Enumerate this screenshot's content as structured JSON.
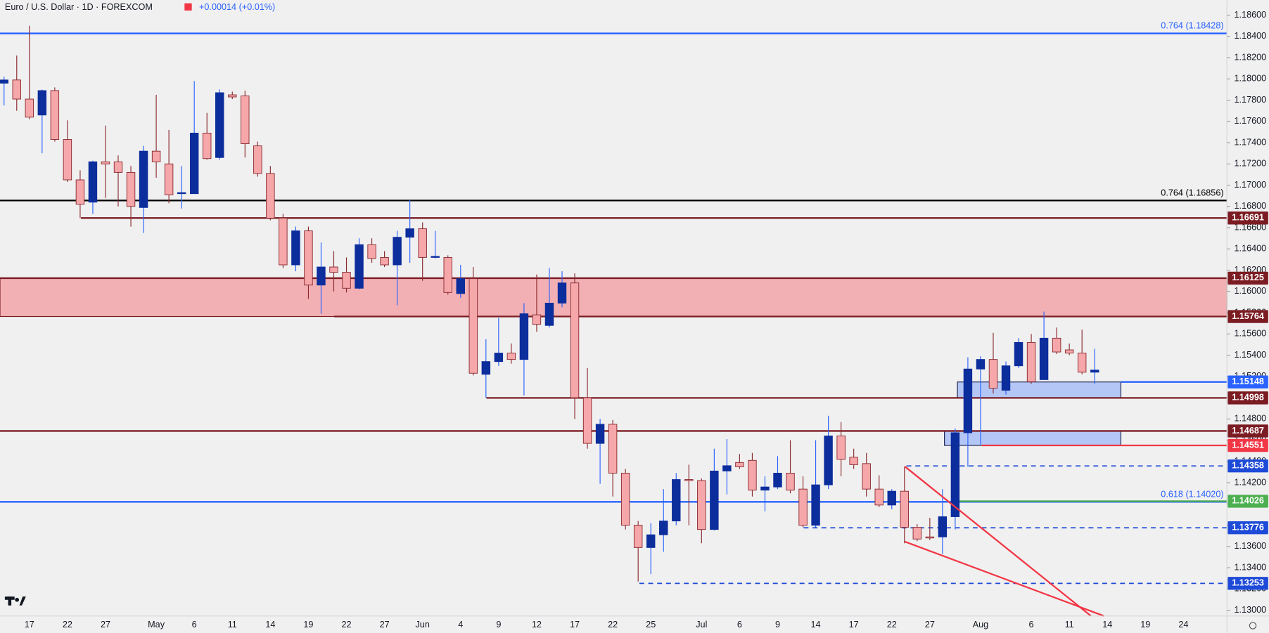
{
  "chart_data": {
    "type": "candlestick",
    "title": "Euro / U.S. Dollar · 1D · FOREXCOM",
    "change": "+0.00014 (+0.01%)",
    "up_color": "#0c2d9c",
    "up_wick_color": "#2962ff",
    "down_color": "#f5a7aa",
    "down_border_color": "#8b2a2f",
    "ylim": [
      1.12946,
      1.18742
    ],
    "yticks": [
      {
        "value": 1.13,
        "label": "1.13000"
      },
      {
        "value": 1.132,
        "label": "1.13200"
      },
      {
        "value": 1.134,
        "label": "1.13400"
      },
      {
        "value": 1.136,
        "label": "1.13600"
      },
      {
        "value": 1.138,
        "label": "1.13800"
      },
      {
        "value": 1.14,
        "label": "1.14000"
      },
      {
        "value": 1.142,
        "label": "1.14200"
      },
      {
        "value": 1.144,
        "label": "1.14400"
      },
      {
        "value": 1.146,
        "label": "1.14600"
      },
      {
        "value": 1.148,
        "label": "1.14800"
      },
      {
        "value": 1.15,
        "label": "1.15000"
      },
      {
        "value": 1.152,
        "label": "1.15200"
      },
      {
        "value": 1.154,
        "label": "1.15400"
      },
      {
        "value": 1.156,
        "label": "1.15600"
      },
      {
        "value": 1.158,
        "label": "1.15800"
      },
      {
        "value": 1.16,
        "label": "1.16000"
      },
      {
        "value": 1.162,
        "label": "1.16200"
      },
      {
        "value": 1.164,
        "label": "1.16400"
      },
      {
        "value": 1.166,
        "label": "1.16600"
      },
      {
        "value": 1.168,
        "label": "1.16800"
      },
      {
        "value": 1.17,
        "label": "1.17000"
      },
      {
        "value": 1.172,
        "label": "1.17200"
      },
      {
        "value": 1.174,
        "label": "1.17400"
      },
      {
        "value": 1.176,
        "label": "1.17600"
      },
      {
        "value": 1.178,
        "label": "1.17800"
      },
      {
        "value": 1.18,
        "label": "1.18000"
      },
      {
        "value": 1.182,
        "label": "1.18200"
      },
      {
        "value": 1.184,
        "label": "1.18400"
      },
      {
        "value": 1.186,
        "label": "1.18600"
      }
    ],
    "categories": [
      null,
      null,
      "17",
      null,
      null,
      "22",
      null,
      null,
      "27",
      null,
      null,
      null,
      "May",
      null,
      null,
      "6",
      null,
      null,
      "11",
      null,
      null,
      "14",
      null,
      null,
      "19",
      null,
      null,
      "22",
      null,
      null,
      "27",
      null,
      null,
      "Jun",
      null,
      null,
      "4",
      null,
      null,
      "9",
      null,
      null,
      "12",
      null,
      null,
      "17",
      null,
      null,
      "22",
      null,
      null,
      "25",
      null,
      null,
      null,
      "Jul",
      null,
      null,
      "6",
      null,
      null,
      "9",
      null,
      null,
      "14",
      null,
      null,
      "17",
      null,
      null,
      "22",
      null,
      null,
      "27",
      null,
      null,
      null,
      "Aug",
      null,
      null,
      null,
      "6",
      null,
      null,
      "11",
      null,
      null,
      "14",
      null,
      null,
      "19",
      null,
      null,
      "24"
    ],
    "open": [
      1.1796,
      1.1799,
      1.1781,
      1.1766,
      1.1789,
      1.1743,
      1.1705,
      1.1684,
      1.1722,
      1.1722,
      1.1712,
      1.1679,
      1.1732,
      1.172,
      1.1692,
      1.1692,
      1.1749,
      1.1726,
      1.1785,
      1.1784,
      1.1737,
      1.1711,
      1.1669,
      1.1625,
      1.1657,
      1.1606,
      1.1623,
      1.1618,
      1.1603,
      1.1644,
      1.1632,
      1.1625,
      1.1651,
      1.1659,
      1.1632,
      1.1632,
      1.1598,
      1.1612,
      1.1522,
      1.1534,
      1.1542,
      1.1536,
      1.1578,
      1.1568,
      1.1589,
      1.1608,
      1.15,
      1.1457,
      1.1475,
      1.1429,
      1.138,
      1.1359,
      1.1371,
      1.1384,
      1.1423,
      1.1422,
      1.1376,
      1.1431,
      1.1439,
      1.1441,
      1.1413,
      1.1416,
      1.1429,
      1.1414,
      1.138,
      1.1418,
      1.1464,
      1.1444,
      1.1438,
      1.1414,
      1.1399,
      1.1412,
      1.1378,
      1.1369,
      1.1369,
      1.1388,
      1.1467,
      1.1527,
      1.1536,
      1.1507,
      1.153,
      1.1552,
      1.1517,
      1.1556,
      1.1545,
      1.1542,
      1.1524,
      null,
      null,
      null,
      null,
      null,
      null,
      null
    ],
    "high": [
      1.1802,
      1.1822,
      1.185,
      1.179,
      1.1792,
      1.1761,
      1.1714,
      1.1723,
      1.1756,
      1.1728,
      1.1718,
      1.1737,
      1.1785,
      1.1752,
      1.1718,
      1.1798,
      1.1768,
      1.179,
      1.1788,
      1.1789,
      1.1741,
      1.1718,
      1.1673,
      1.1661,
      1.1661,
      1.1646,
      1.1638,
      1.1632,
      1.165,
      1.165,
      1.1638,
      1.1657,
      1.1686,
      1.1665,
      1.1657,
      1.1634,
      1.1625,
      1.1623,
      1.1555,
      1.1575,
      1.1551,
      1.1589,
      1.1616,
      1.1622,
      1.1619,
      1.1617,
      1.1528,
      1.148,
      1.1479,
      1.1433,
      1.1384,
      1.1382,
      1.1414,
      1.1429,
      1.1437,
      1.1424,
      1.1452,
      1.1461,
      1.1447,
      1.1448,
      1.1426,
      1.1445,
      1.146,
      1.1426,
      1.146,
      1.1483,
      1.1477,
      1.1452,
      1.1448,
      1.1427,
      1.1414,
      1.1435,
      1.1381,
      1.1387,
      1.1414,
      1.1471,
      1.1538,
      1.1539,
      1.1561,
      1.1534,
      1.1556,
      1.156,
      1.1581,
      1.1566,
      1.1551,
      1.1564,
      1.1546,
      null,
      null,
      null,
      null,
      null,
      null,
      null
    ],
    "low": [
      1.1775,
      1.177,
      1.1762,
      1.173,
      1.1741,
      1.1703,
      1.1669,
      1.1673,
      1.1688,
      1.168,
      1.1661,
      1.1655,
      1.1707,
      1.1683,
      1.1678,
      1.1692,
      1.1724,
      1.1724,
      1.1781,
      1.1726,
      1.1708,
      1.1667,
      1.1622,
      1.1619,
      1.1593,
      1.1579,
      1.16,
      1.1599,
      1.1602,
      1.1627,
      1.1623,
      1.1587,
      1.1627,
      1.161,
      1.1631,
      1.1597,
      1.1594,
      1.1521,
      1.15,
      1.153,
      1.1532,
      1.1502,
      1.1562,
      1.1566,
      1.1585,
      1.148,
      1.1452,
      1.1419,
      1.1407,
      1.1376,
      1.1327,
      1.1334,
      1.1355,
      1.138,
      1.138,
      1.1363,
      1.1375,
      1.1409,
      1.1433,
      1.1407,
      1.1393,
      1.1414,
      1.141,
      1.1378,
      1.1378,
      1.1414,
      1.1426,
      1.1433,
      1.1407,
      1.1397,
      1.1395,
      1.1363,
      1.1365,
      1.1366,
      1.1353,
      1.1376,
      1.1435,
      1.1456,
      1.1504,
      1.1503,
      1.1528,
      1.1513,
      1.1517,
      1.1541,
      1.154,
      1.1522,
      1.1513,
      null,
      null,
      null,
      null,
      null,
      null,
      null
    ],
    "close": [
      1.1799,
      1.1781,
      1.1764,
      1.1789,
      1.1743,
      1.1705,
      1.1682,
      1.1722,
      1.172,
      1.1712,
      1.168,
      1.1732,
      1.1722,
      1.1691,
      1.1693,
      1.1749,
      1.1725,
      1.1787,
      1.1783,
      1.1739,
      1.1711,
      1.1669,
      1.1625,
      1.1657,
      1.1606,
      1.1623,
      1.1618,
      1.1603,
      1.1644,
      1.1631,
      1.1625,
      1.1651,
      1.1659,
      1.1632,
      1.1633,
      1.1599,
      1.1612,
      1.1523,
      1.1534,
      1.1542,
      1.1536,
      1.1579,
      1.1569,
      1.1589,
      1.1608,
      1.15,
      1.1457,
      1.1475,
      1.1429,
      1.138,
      1.1359,
      1.1371,
      1.1384,
      1.1423,
      1.1422,
      1.1376,
      1.1431,
      1.1436,
      1.1435,
      1.1413,
      1.1416,
      1.1429,
      1.1413,
      1.138,
      1.1418,
      1.1464,
      1.1442,
      1.1437,
      1.1414,
      1.1399,
      1.1412,
      1.1378,
      1.1367,
      1.1368,
      1.1388,
      1.1467,
      1.1527,
      1.1536,
      1.1509,
      1.153,
      1.1552,
      1.1515,
      1.1556,
      1.1543,
      1.1542,
      1.1524,
      1.1526,
      null,
      null,
      null,
      null,
      null,
      null,
      null
    ],
    "zones": [
      {
        "top": 1.16125,
        "bottom": 1.15764,
        "color": "#f2b0b4",
        "border": "#7b1c22"
      },
      {
        "top": 1.15148,
        "bottom": 1.14998,
        "color": "#b3c6f5",
        "border": "#1b1f4a"
      },
      {
        "top": 1.14687,
        "bottom": 1.14551,
        "color": "#b3c6f5",
        "border": "#1b1f4a"
      }
    ],
    "levels": [
      {
        "value": 1.18428,
        "text": "0.764 (1.18428)",
        "color": "#2962ff"
      },
      {
        "value": 1.16856,
        "text": "0.764 (1.16856)",
        "color": "#000000"
      },
      {
        "value": 1.16691,
        "label": "1.16691",
        "color": "#7b1c22"
      },
      {
        "value": 1.16125,
        "label": "1.16125",
        "color": "#7b1c22"
      },
      {
        "value": 1.15764,
        "label": "1.15764",
        "color": "#7b1c22"
      },
      {
        "value": 1.15148,
        "label": "1.15148",
        "color": "#2962ff"
      },
      {
        "value": 1.14998,
        "label": "1.14998",
        "color": "#7b1c22"
      },
      {
        "value": 1.14687,
        "label": "1.14687",
        "color": "#7b1c22"
      },
      {
        "value": 1.14551,
        "label": "1.14551",
        "color": "#f23645"
      },
      {
        "value": 1.14358,
        "label": "1.14358",
        "color": "#1e4ad8",
        "dashed": true
      },
      {
        "value": 1.1402,
        "text": "0.618 (1.14020)",
        "color": "#2962ff"
      },
      {
        "value": 1.14026,
        "label": "1.14026",
        "color": "#4caf50"
      },
      {
        "value": 1.13776,
        "label": "1.13776",
        "color": "#1e4ad8",
        "dashed": true
      },
      {
        "value": 1.13253,
        "label": "1.13253",
        "color": "#1e4ad8",
        "dashed": true
      }
    ]
  }
}
